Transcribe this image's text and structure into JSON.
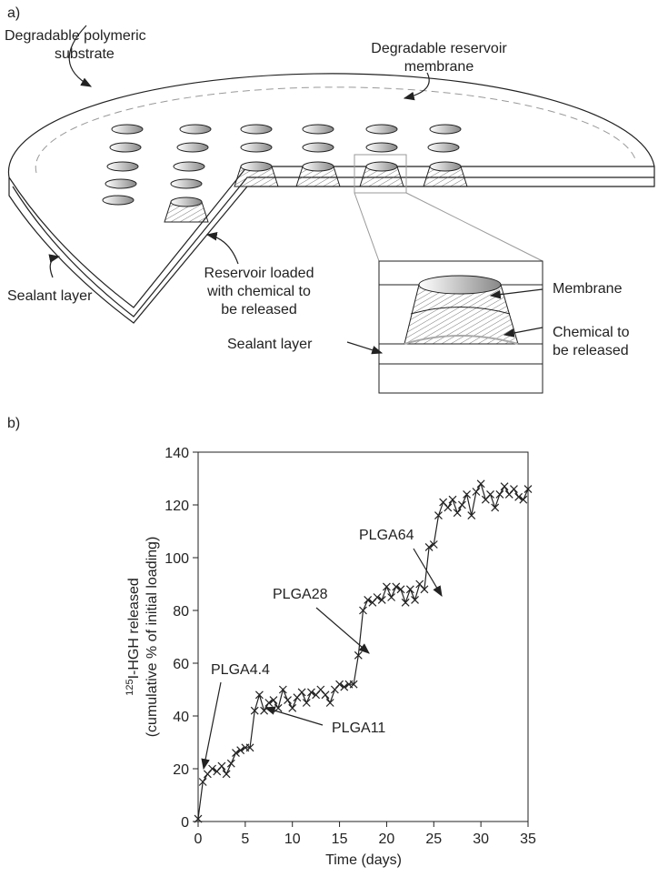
{
  "panel_a": {
    "label": "a)",
    "substrate": [
      "Degradable polymeric",
      "substrate"
    ],
    "membrane_top": [
      "Degradable reservoir",
      "membrane"
    ],
    "sealant_left": "Sealant layer",
    "reservoir": [
      "Reservoir loaded",
      "with chemical to",
      "be released"
    ],
    "inset_membrane": "Membrane",
    "inset_chemical": [
      "Chemical to",
      "be released"
    ],
    "inset_sealant": "Sealant layer"
  },
  "chart_data": {
    "type": "line",
    "panel_label": "b)",
    "marker": "x",
    "color": "#222",
    "x_label": "Time (days)",
    "y_label": {
      "sup": "125",
      "main": "I-HGH released",
      "sub": "(cumulative % of initial loading)"
    },
    "x": [
      0,
      0.5,
      1,
      1.5,
      2,
      2.5,
      3,
      3.5,
      4,
      4.5,
      5,
      5.5,
      6,
      6.5,
      7,
      7.5,
      8,
      8.5,
      9,
      9.5,
      10,
      10.5,
      11,
      11.5,
      12,
      12.5,
      13,
      13.5,
      14,
      14.5,
      15,
      15.5,
      16,
      16.5,
      17,
      17.5,
      18,
      18.5,
      19,
      19.5,
      20,
      20.5,
      21,
      21.5,
      22,
      22.5,
      23,
      23.5,
      24,
      24.5,
      25,
      25.5,
      26,
      26.5,
      27,
      27.5,
      28,
      28.5,
      29,
      29.5,
      30,
      30.5,
      31,
      31.5,
      32,
      32.5,
      33,
      33.5,
      34,
      34.5,
      35
    ],
    "values": [
      1,
      15,
      18,
      20,
      19,
      21,
      18,
      22,
      26,
      27,
      28,
      28,
      42,
      48,
      42,
      45,
      46,
      43,
      50,
      46,
      43,
      47,
      49,
      45,
      49,
      48,
      50,
      48,
      45,
      50,
      52,
      51,
      52,
      52,
      63,
      80,
      84,
      83,
      85,
      84,
      89,
      85,
      89,
      88,
      83,
      88,
      84,
      90,
      88,
      104,
      105,
      116,
      121,
      119,
      122,
      117,
      120,
      124,
      116,
      125,
      128,
      122,
      124,
      119,
      124,
      127,
      124,
      126,
      123,
      122,
      126
    ],
    "xlim": [
      0,
      35
    ],
    "xticks": [
      0,
      5,
      10,
      15,
      20,
      25,
      30,
      35
    ],
    "ylim": [
      0,
      140
    ],
    "yticks": [
      0,
      20,
      40,
      60,
      80,
      100,
      120,
      140
    ],
    "annotations": [
      "PLGA4.4",
      "PLGA11",
      "PLGA28",
      "PLGA64"
    ]
  }
}
